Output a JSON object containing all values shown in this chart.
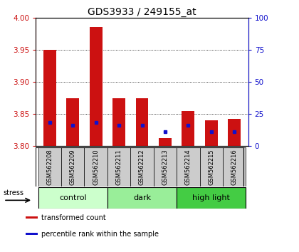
{
  "title": "GDS3933 / 249155_at",
  "samples": [
    "GSM562208",
    "GSM562209",
    "GSM562210",
    "GSM562211",
    "GSM562212",
    "GSM562213",
    "GSM562214",
    "GSM562215",
    "GSM562216"
  ],
  "bar_tops": [
    3.95,
    3.875,
    3.985,
    3.875,
    3.875,
    3.813,
    3.855,
    3.84,
    3.843
  ],
  "bar_bottoms": [
    3.8,
    3.8,
    3.8,
    3.8,
    3.8,
    3.8,
    3.8,
    3.8,
    3.8
  ],
  "percentile_values": [
    3.837,
    3.832,
    3.837,
    3.832,
    3.833,
    3.823,
    3.832,
    3.822,
    3.822
  ],
  "bar_color": "#cc1111",
  "pct_color": "#1111cc",
  "ylim_left": [
    3.8,
    4.0
  ],
  "ylim_right": [
    0,
    100
  ],
  "yticks_left": [
    3.8,
    3.85,
    3.9,
    3.95,
    4.0
  ],
  "yticks_right": [
    0,
    25,
    50,
    75,
    100
  ],
  "grid_lines": [
    3.85,
    3.9,
    3.95
  ],
  "groups": [
    {
      "label": "control",
      "start": 0,
      "end": 3,
      "color": "#ccffcc"
    },
    {
      "label": "dark",
      "start": 3,
      "end": 6,
      "color": "#99ee99"
    },
    {
      "label": "high light",
      "start": 6,
      "end": 9,
      "color": "#44cc44"
    }
  ],
  "stress_label": "stress",
  "legend_items": [
    {
      "color": "#cc1111",
      "label": "transformed count"
    },
    {
      "color": "#1111cc",
      "label": "percentile rank within the sample"
    }
  ],
  "bar_width": 0.55,
  "ylabel_left_color": "#cc1111",
  "ylabel_right_color": "#1111cc",
  "sample_box_color": "#cccccc",
  "fig_bg": "#ffffff"
}
